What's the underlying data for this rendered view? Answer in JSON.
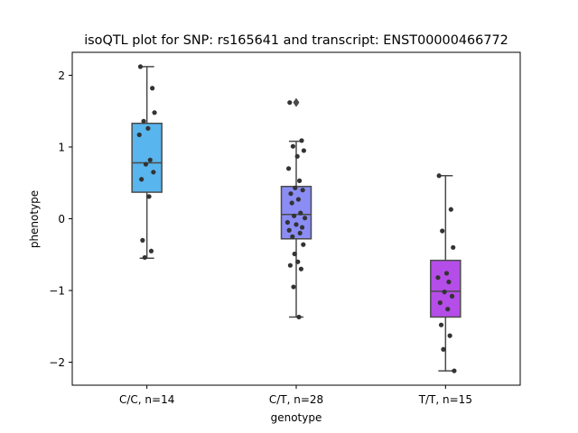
{
  "chart_data": {
    "type": "box",
    "title": "isoQTL plot for SNP: rs165641 and transcript: ENST00000466772",
    "xlabel": "genotype",
    "ylabel": "phenotype",
    "ylim": [
      -2.32,
      2.32
    ],
    "yticks": [
      -2,
      -1,
      0,
      1,
      2
    ],
    "yticklabels": [
      "−2",
      "−1",
      "0",
      "1",
      "2"
    ],
    "grid": false,
    "legend": "none",
    "categories": [
      "C/C, n=14",
      "C/T, n=28",
      "T/T, n=15"
    ],
    "groups": [
      {
        "category": "C/C, n=14",
        "color": "#58b5ed",
        "whisker_low": -0.55,
        "q1": 0.37,
        "median": 0.78,
        "q3": 1.33,
        "whisker_high": 2.12,
        "outliers": [],
        "points": [
          2.12,
          1.82,
          1.36,
          1.48,
          1.26,
          1.17,
          0.82,
          0.76,
          0.65,
          0.55,
          0.31,
          -0.3,
          -0.45,
          -0.54
        ]
      },
      {
        "category": "C/T, n=28",
        "color": "#8b8df5",
        "whisker_low": -1.37,
        "q1": -0.28,
        "median": 0.06,
        "q3": 0.45,
        "whisker_high": 1.08,
        "outliers": [
          1.62
        ],
        "points": [
          1.62,
          1.09,
          1.01,
          0.95,
          0.87,
          0.7,
          0.53,
          0.43,
          0.4,
          0.35,
          0.27,
          0.22,
          0.08,
          0.04,
          0.01,
          -0.05,
          -0.08,
          -0.12,
          -0.16,
          -0.2,
          -0.25,
          -0.36,
          -0.49,
          -0.6,
          -0.65,
          -0.7,
          -0.95,
          -1.37
        ]
      },
      {
        "category": "T/T, n=15",
        "color": "#b54de8",
        "whisker_low": -2.12,
        "q1": -1.37,
        "median": -1.01,
        "q3": -0.58,
        "whisker_high": 0.6,
        "outliers": [],
        "points": [
          0.6,
          0.13,
          -0.17,
          -0.4,
          -0.76,
          -0.82,
          -0.88,
          -1.02,
          -1.08,
          -1.17,
          -1.26,
          -1.48,
          -1.63,
          -1.82,
          -2.12
        ]
      }
    ]
  }
}
